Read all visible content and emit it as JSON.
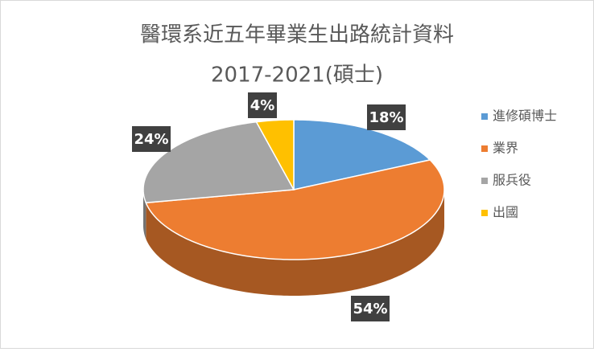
{
  "chart_data": {
    "type": "pie",
    "title": "醫環系近五年畢業生出路統計資料",
    "subtitle": "2017-2021(碩士)",
    "categories": [
      "進修碩博士",
      "業界",
      "服兵役",
      "出國"
    ],
    "values": [
      18,
      54,
      24,
      4
    ],
    "value_labels": [
      "18%",
      "54%",
      "24%",
      "4%"
    ],
    "colors": [
      "#5b9bd5",
      "#ed7d31",
      "#a5a5a5",
      "#ffc000"
    ],
    "legend": "right"
  }
}
